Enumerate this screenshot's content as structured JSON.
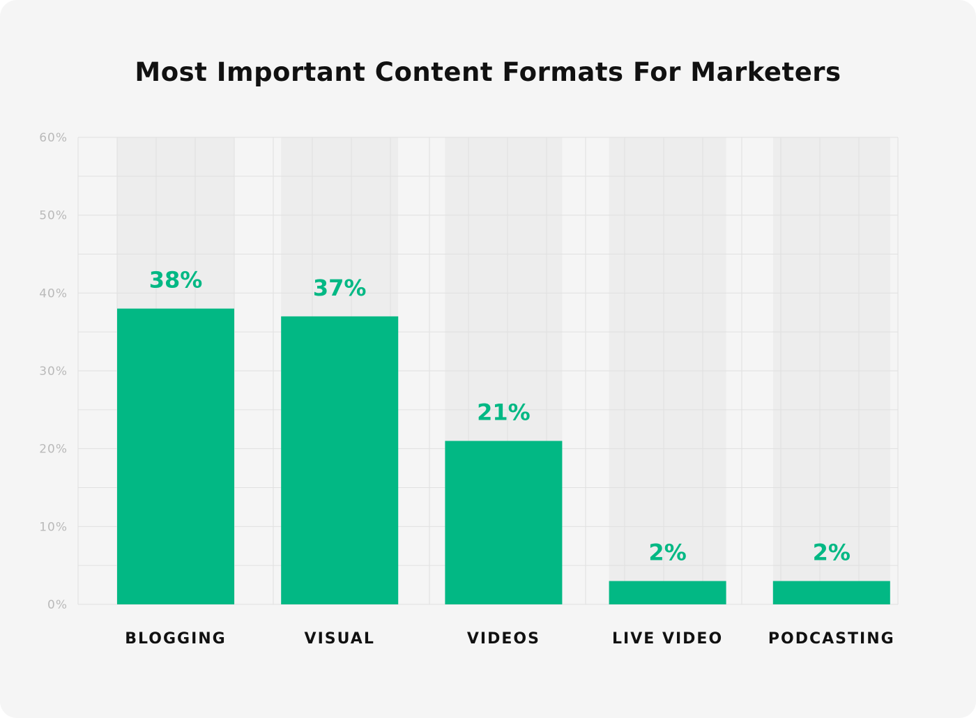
{
  "chart_data": {
    "type": "bar",
    "title": "Most Important Content Formats For Marketers",
    "categories": [
      "BLOGGING",
      "VISUAL",
      "VIDEOS",
      "LIVE VIDEO",
      "PODCASTING"
    ],
    "values": [
      38,
      37,
      21,
      2,
      2
    ],
    "data_labels": [
      "38%",
      "37%",
      "21%",
      "2%",
      "2%"
    ],
    "y_ticks": [
      0,
      10,
      20,
      30,
      40,
      50,
      60
    ],
    "y_tick_labels": [
      "0%",
      "10%",
      "20%",
      "30%",
      "40%",
      "50%",
      "60%"
    ],
    "ylim": [
      0,
      60
    ],
    "xlabel": "",
    "ylabel": "",
    "grid": true,
    "legend": "none",
    "colors": {
      "bar": "#02b884",
      "data_label": "#02b884",
      "column_background": "#ededed",
      "grid": "#e0e0e0",
      "page_background": "#f5f5f5"
    }
  }
}
